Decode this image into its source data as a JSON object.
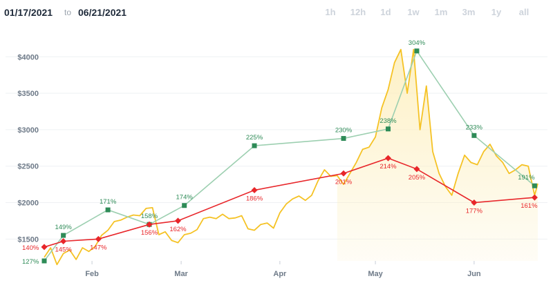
{
  "header": {
    "date_from": "01/17/2021",
    "date_separator": "to",
    "date_to": "06/21/2021",
    "ranges": [
      "1h",
      "12h",
      "1d",
      "1w",
      "1m",
      "3m",
      "1y",
      "all"
    ]
  },
  "chart_data": {
    "type": "line",
    "title": "",
    "xlabel": "",
    "ylabel": "",
    "x_ticks": [
      "Feb",
      "Mar",
      "Apr",
      "May",
      "Jun"
    ],
    "y_ticks": [
      "$1500",
      "$2000",
      "$2500",
      "$3000",
      "$3500",
      "$4000"
    ],
    "ylim": [
      1200,
      4400
    ],
    "xlim": [
      "2021-01-17",
      "2021-06-21"
    ],
    "grid": true,
    "legend": "none",
    "colors": {
      "price": "#f5c224",
      "area": "#fdf0c2",
      "green": "#2e8b57",
      "green_line": "#9ccfb0",
      "red": "#e8262a"
    },
    "series": [
      {
        "color": "#f5c224",
        "x": [
          "2021-01-17",
          "2021-01-19",
          "2021-01-21",
          "2021-01-23",
          "2021-01-25",
          "2021-01-27",
          "2021-01-29",
          "2021-01-31",
          "2021-02-02",
          "2021-02-04",
          "2021-02-06",
          "2021-02-08",
          "2021-02-10",
          "2021-02-12",
          "2021-02-14",
          "2021-02-16",
          "2021-02-18",
          "2021-02-20",
          "2021-02-22",
          "2021-02-24",
          "2021-02-26",
          "2021-02-28",
          "2021-03-02",
          "2021-03-04",
          "2021-03-06",
          "2021-03-08",
          "2021-03-10",
          "2021-03-12",
          "2021-03-14",
          "2021-03-16",
          "2021-03-18",
          "2021-03-20",
          "2021-03-22",
          "2021-03-24",
          "2021-03-26",
          "2021-03-28",
          "2021-03-30",
          "2021-04-01",
          "2021-04-03",
          "2021-04-05",
          "2021-04-07",
          "2021-04-09",
          "2021-04-11",
          "2021-04-13",
          "2021-04-15",
          "2021-04-17",
          "2021-04-19",
          "2021-04-21",
          "2021-04-23",
          "2021-04-25",
          "2021-04-27",
          "2021-04-29",
          "2021-05-01",
          "2021-05-03",
          "2021-05-05",
          "2021-05-07",
          "2021-05-09",
          "2021-05-11",
          "2021-05-13",
          "2021-05-15",
          "2021-05-17",
          "2021-05-19",
          "2021-05-21",
          "2021-05-23",
          "2021-05-25",
          "2021-05-27",
          "2021-05-29",
          "2021-05-31",
          "2021-06-02",
          "2021-06-04",
          "2021-06-06",
          "2021-06-08",
          "2021-06-10",
          "2021-06-12",
          "2021-06-14",
          "2021-06-16",
          "2021-06-18",
          "2021-06-20",
          "2021-06-21"
        ],
        "y": [
          1250,
          1380,
          1150,
          1300,
          1350,
          1220,
          1380,
          1330,
          1400,
          1550,
          1620,
          1740,
          1760,
          1800,
          1830,
          1820,
          1920,
          1930,
          1560,
          1600,
          1480,
          1450,
          1560,
          1580,
          1630,
          1780,
          1800,
          1780,
          1840,
          1780,
          1790,
          1820,
          1640,
          1620,
          1700,
          1720,
          1650,
          1860,
          1980,
          2050,
          2090,
          2030,
          2100,
          2300,
          2450,
          2360,
          2370,
          2250,
          2400,
          2550,
          2730,
          2760,
          2900,
          3300,
          3550,
          3920,
          4100,
          3500,
          4100,
          3000,
          3600,
          2700,
          2400,
          2220,
          2100,
          2400,
          2650,
          2550,
          2520,
          2700,
          2800,
          2640,
          2550,
          2400,
          2450,
          2520,
          2500,
          2100,
          2260
        ]
      },
      {
        "color": "#2e8b57",
        "x": [
          "2021-01-17",
          "2021-01-23",
          "2021-02-06",
          "2021-02-19",
          "2021-03-02",
          "2021-03-24",
          "2021-04-21",
          "2021-05-05",
          "2021-05-14",
          "2021-06-01",
          "2021-06-20"
        ],
        "y": [
          1200,
          1550,
          1900,
          1700,
          1960,
          2780,
          2880,
          3010,
          4080,
          2920,
          2230
        ],
        "labels": [
          "127%",
          "149%",
          "171%",
          "158%",
          "174%",
          "225%",
          "230%",
          "238%",
          "304%",
          "233%",
          "191%"
        ]
      },
      {
        "color": "#e8262a",
        "x": [
          "2021-01-17",
          "2021-01-23",
          "2021-02-03",
          "2021-02-19",
          "2021-02-28",
          "2021-03-24",
          "2021-04-21",
          "2021-05-05",
          "2021-05-14",
          "2021-06-01",
          "2021-06-20"
        ],
        "y": [
          1390,
          1470,
          1500,
          1700,
          1750,
          2170,
          2400,
          2610,
          2460,
          2000,
          2070
        ],
        "labels": [
          "140%",
          "145%",
          "147%",
          "156%",
          "162%",
          "186%",
          "201%",
          "214%",
          "205%",
          "177%",
          "161%"
        ]
      }
    ]
  }
}
